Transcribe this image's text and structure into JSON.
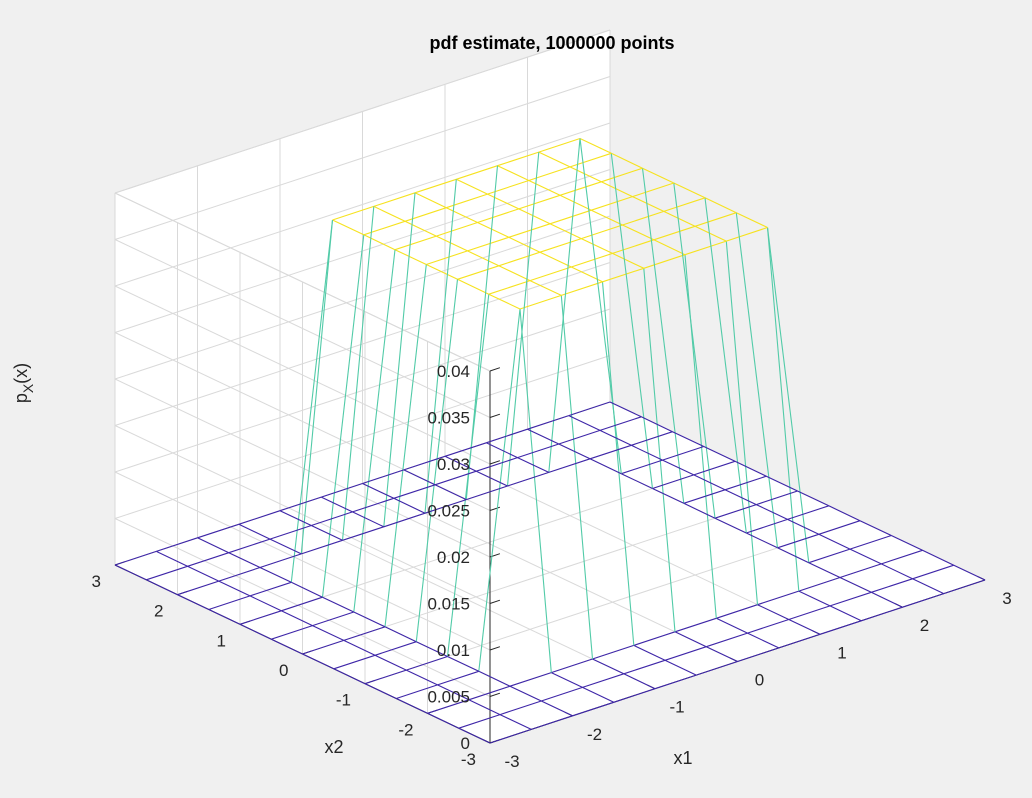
{
  "window": {
    "background": "#f0f0f0"
  },
  "chart_data": {
    "type": "surface-mesh",
    "title": "pdf estimate, 1000000 points",
    "xlabel": "x1",
    "ylabel": "x2",
    "zlabel": {
      "main": "p",
      "sub": "X",
      "rest": "(x)"
    },
    "x": [
      -3,
      -2.5,
      -2,
      -1.5,
      -1,
      -0.5,
      0,
      0.5,
      1,
      1.5,
      2,
      2.5,
      3
    ],
    "y": [
      -3,
      -2.5,
      -2,
      -1.5,
      -1,
      -0.5,
      0,
      0.5,
      1,
      1.5,
      2,
      2.5,
      3
    ],
    "xlim": [
      -3,
      3
    ],
    "ylim": [
      -3,
      3
    ],
    "zlim": [
      0,
      0.04
    ],
    "x_ticks": [
      {
        "v": -3,
        "label": "-3"
      },
      {
        "v": -2,
        "label": "-2"
      },
      {
        "v": -1,
        "label": "-1"
      },
      {
        "v": 0,
        "label": "0"
      },
      {
        "v": 1,
        "label": "1"
      },
      {
        "v": 2,
        "label": "2"
      },
      {
        "v": 3,
        "label": "3"
      }
    ],
    "y_ticks": [
      {
        "v": -3,
        "label": "-3"
      },
      {
        "v": -2,
        "label": "-2"
      },
      {
        "v": -1,
        "label": "-1"
      },
      {
        "v": 0,
        "label": "0"
      },
      {
        "v": 1,
        "label": "1"
      },
      {
        "v": 2,
        "label": "2"
      },
      {
        "v": 3,
        "label": "3"
      }
    ],
    "z_ticks": [
      {
        "v": 0,
        "label": "0"
      },
      {
        "v": 0.005,
        "label": "0.005"
      },
      {
        "v": 0.01,
        "label": "0.01"
      },
      {
        "v": 0.015,
        "label": "0.015"
      },
      {
        "v": 0.02,
        "label": "0.02"
      },
      {
        "v": 0.025,
        "label": "0.025"
      },
      {
        "v": 0.03,
        "label": "0.03"
      },
      {
        "v": 0.035,
        "label": "0.035"
      },
      {
        "v": 0.04,
        "label": "0.04"
      }
    ],
    "plateau_region": [
      -1.5,
      1.5
    ],
    "plateau_value": 0.0375,
    "view": {
      "azimuth": -37.5,
      "elevation": 30
    },
    "grid": true,
    "colormap": "parula",
    "colormap_stops": [
      "#3e26a8",
      "#2c7ce8",
      "#19b7c9",
      "#5fd0a0",
      "#b8c952",
      "#f0b93b",
      "#f9fb0e"
    ],
    "box_color": "#d9d9d9",
    "axis_color": "#262626"
  }
}
